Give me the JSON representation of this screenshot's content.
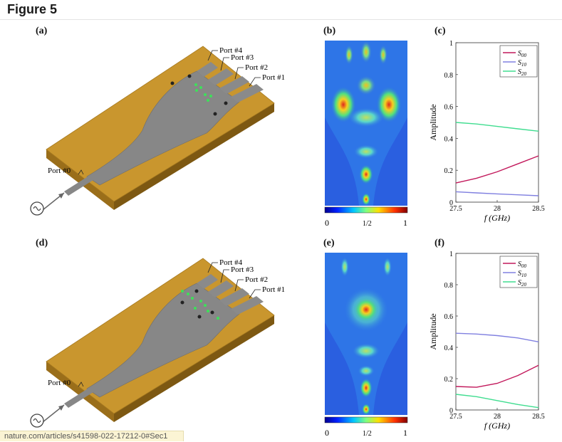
{
  "figure": {
    "title": "Figure 5"
  },
  "panels": {
    "a": "(a)",
    "b": "(b)",
    "c": "(c)",
    "d": "(d)",
    "e": "(e)",
    "f": "(f)"
  },
  "device": {
    "ports": [
      "Port #4",
      "Port #3",
      "Port #2",
      "Port #1"
    ],
    "input_port": "Port #0",
    "colors": {
      "substrate": "#c9962e",
      "metal": "#8a8a8a"
    }
  },
  "colorbar": {
    "ticks": [
      "0",
      "1/2",
      "1"
    ]
  },
  "chart_data": [
    {
      "type": "line",
      "panel": "(c)",
      "x": [
        27.5,
        27.75,
        28.0,
        28.25,
        28.5
      ],
      "series": [
        {
          "name": "S00",
          "color": "#c2185b",
          "values": [
            0.12,
            0.15,
            0.19,
            0.24,
            0.29
          ]
        },
        {
          "name": "S10",
          "color": "#8080e0",
          "values": [
            0.065,
            0.058,
            0.052,
            0.046,
            0.04
          ]
        },
        {
          "name": "S20",
          "color": "#40dd90",
          "values": [
            0.5,
            0.49,
            0.475,
            0.46,
            0.445
          ]
        }
      ],
      "xlabel": "f (GHz)",
      "ylabel": "Amplitude",
      "xlim": [
        27.5,
        28.5
      ],
      "ylim": [
        0,
        1
      ],
      "xticks": [
        "27.5",
        "28",
        "28.5"
      ],
      "yticks": [
        "0",
        "0.2",
        "0.4",
        "0.6",
        "0.8",
        "1"
      ],
      "legend": "top-right"
    },
    {
      "type": "line",
      "panel": "(f)",
      "x": [
        27.5,
        27.75,
        28.0,
        28.25,
        28.5
      ],
      "series": [
        {
          "name": "S00",
          "color": "#c2185b",
          "values": [
            0.15,
            0.145,
            0.17,
            0.22,
            0.285
          ]
        },
        {
          "name": "S10",
          "color": "#8080e0",
          "values": [
            0.49,
            0.485,
            0.475,
            0.46,
            0.435
          ]
        },
        {
          "name": "S20",
          "color": "#40dd90",
          "values": [
            0.1,
            0.085,
            0.06,
            0.035,
            0.015
          ]
        }
      ],
      "xlabel": "f (GHz)",
      "ylabel": "Amplitude",
      "xlim": [
        27.5,
        28.5
      ],
      "ylim": [
        0,
        1
      ],
      "xticks": [
        "27.5",
        "28",
        "28.5"
      ],
      "yticks": [
        "0",
        "0.2",
        "0.4",
        "0.6",
        "0.8",
        "1"
      ],
      "legend": "top-right"
    }
  ],
  "statusbar": {
    "url": "nature.com/articles/s41598-022-17212-0#Sec1"
  }
}
